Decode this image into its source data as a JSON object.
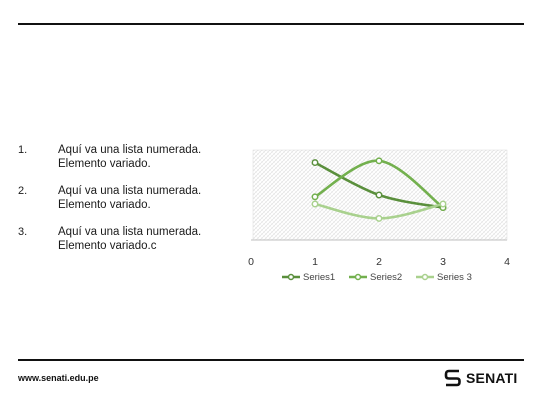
{
  "list": {
    "items": [
      {
        "number": "1.",
        "line1": "Aquí va una lista numerada.",
        "line2": "Elemento variado."
      },
      {
        "number": "2.",
        "line1": "Aquí va una lista numerada.",
        "line2": "Elemento variado."
      },
      {
        "number": "3.",
        "line1": "Aquí va una lista numerada.",
        "line2": "Elemento variado.c"
      }
    ]
  },
  "chart_data": {
    "type": "line",
    "smooth": true,
    "x_ticks": [
      "0",
      "1",
      "2",
      "3",
      "4"
    ],
    "xlim": [
      0,
      4
    ],
    "ylim": [
      0,
      5
    ],
    "grid": "hatched plot area",
    "legend_position": "bottom",
    "series": [
      {
        "name": "Series1",
        "x": [
          1,
          2,
          3
        ],
        "values": [
          4.3,
          2.5,
          1.8
        ],
        "color": "#5a8f3c"
      },
      {
        "name": "Series2",
        "x": [
          1,
          2,
          3
        ],
        "values": [
          2.4,
          4.4,
          1.8
        ],
        "color": "#73b04e"
      },
      {
        "name": "Series 3",
        "x": [
          1,
          2,
          3
        ],
        "values": [
          2.0,
          1.2,
          2.0
        ],
        "color": "#a9d18e"
      }
    ]
  },
  "footer": {
    "url": "www.senati.edu.pe",
    "logo_text": "SENATI"
  }
}
